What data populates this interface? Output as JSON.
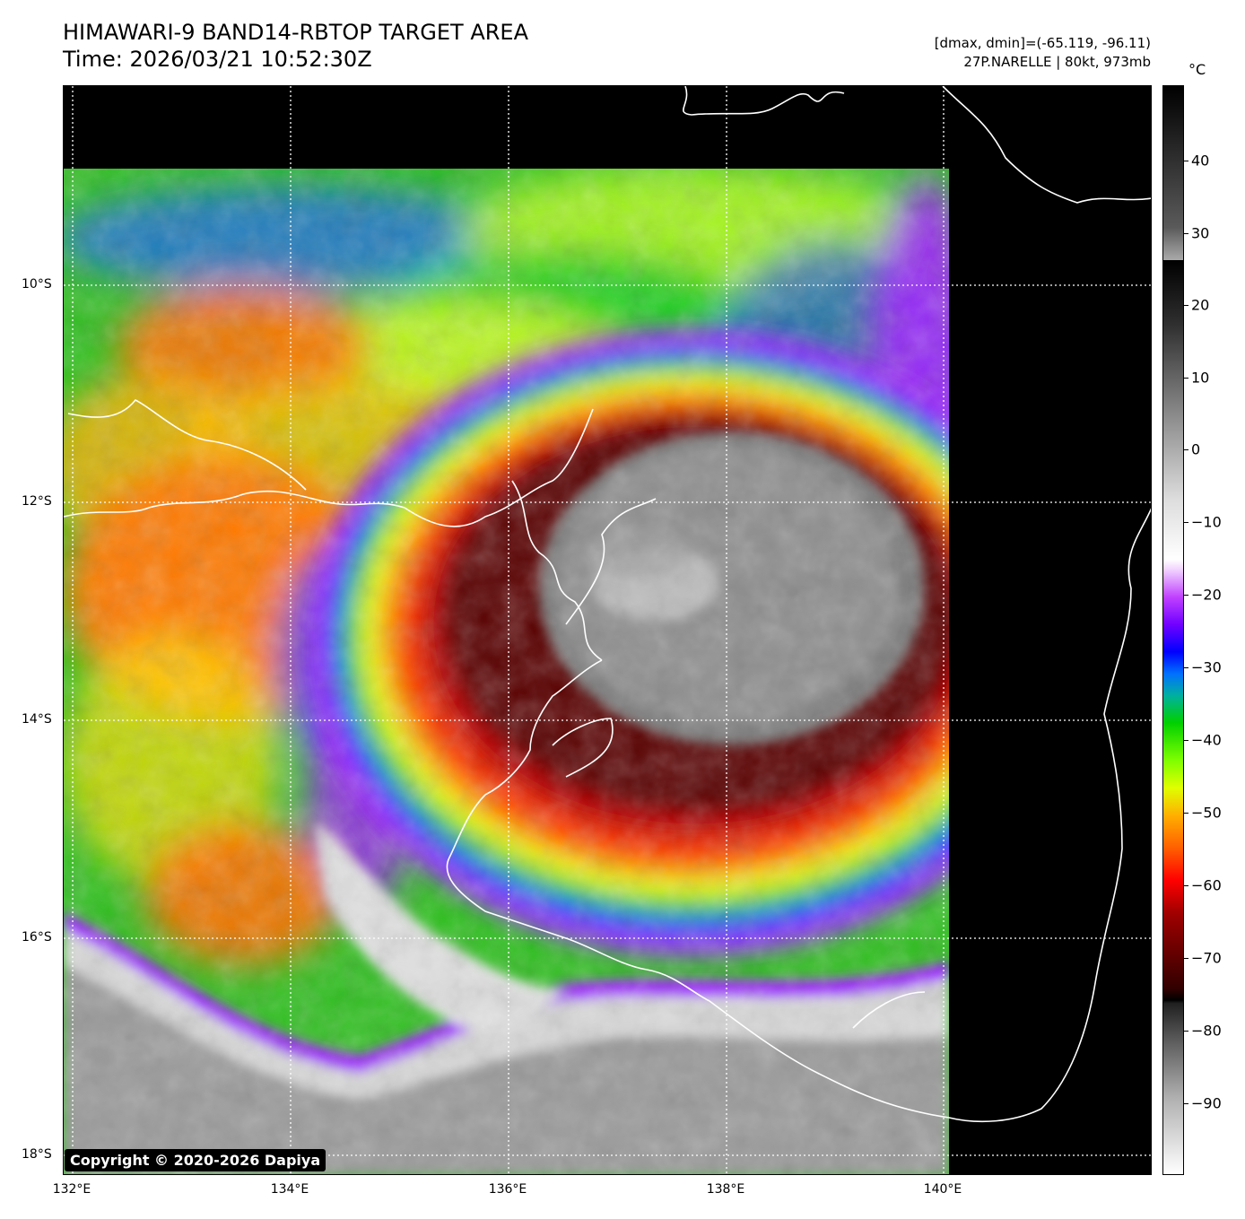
{
  "header": {
    "title_line1": "HIMAWARI-9 BAND14-RBTOP TARGET AREA",
    "title_line2": "Time: 2026/03/21 10:52:30Z",
    "dmax_dmin": "[dmax, dmin]=(-65.119, -96.11)",
    "storm_info": "27P.NARELLE | 80kt, 973mb"
  },
  "colorbar": {
    "unit": "°C",
    "ticks": [
      "40",
      "30",
      "20",
      "10",
      "0",
      "−10",
      "−20",
      "−30",
      "−40",
      "−50",
      "−60",
      "−70",
      "−80",
      "−90"
    ]
  },
  "axes": {
    "lat_labels": [
      "10°S",
      "12°S",
      "14°S",
      "16°S",
      "18°S"
    ],
    "lon_labels": [
      "132°E",
      "134°E",
      "136°E",
      "138°E",
      "140°E"
    ]
  },
  "copyright": "Copyright © 2020-2026 Dapiya",
  "colors": {
    "background": "#000000",
    "coastline": "#ffffff",
    "gridline": "#ffffff",
    "cloud_core_gray": "#8a8a8a",
    "ring_dark_red": "#5a0000",
    "ring_red": "#c80000",
    "ring_orange": "#ff7a00",
    "ring_yellow": "#e8ff20",
    "ring_green": "#20d020",
    "ring_blue": "#2040ff",
    "ring_purple": "#a020ff"
  }
}
